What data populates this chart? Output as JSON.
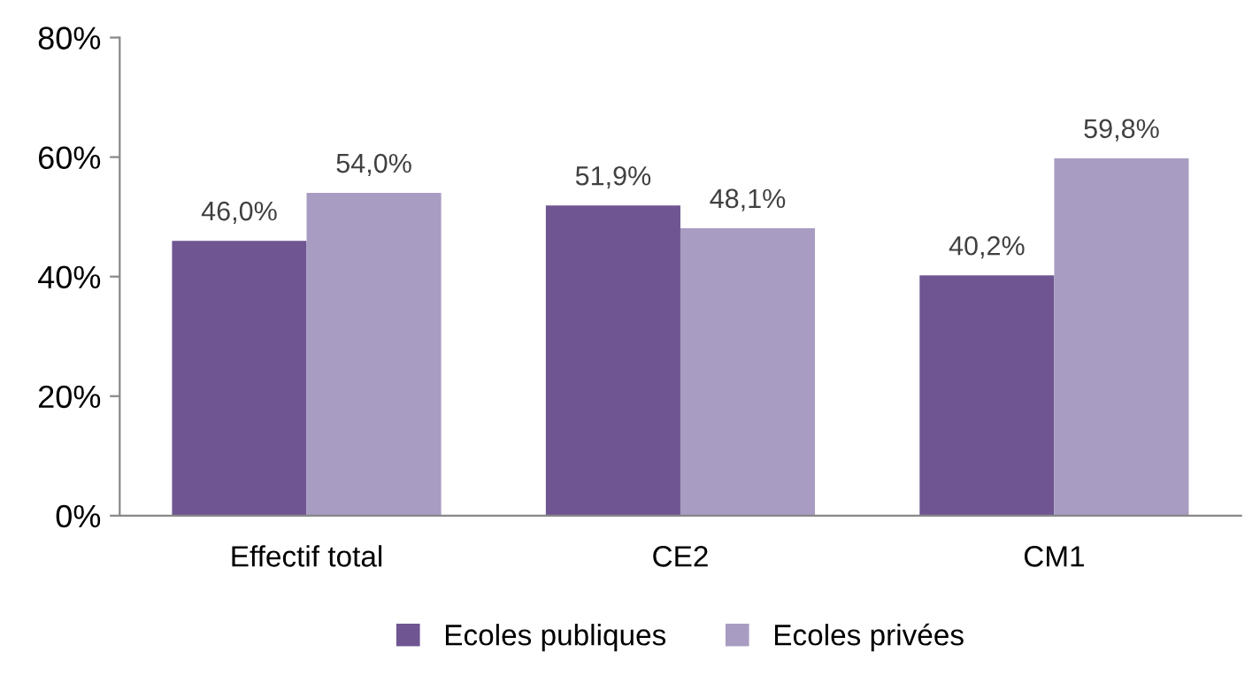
{
  "chart_data": {
    "type": "bar",
    "categories": [
      "Effectif total",
      "CE2",
      "CM1"
    ],
    "series": [
      {
        "name": "Ecoles publiques",
        "color": "#6f5592",
        "values": [
          46.0,
          51.9,
          40.2
        ],
        "value_labels": [
          "46,0%",
          "51,9%",
          "40,2%"
        ]
      },
      {
        "name": "Ecoles privées",
        "color": "#a99cc2",
        "values": [
          54.0,
          48.1,
          59.8
        ],
        "value_labels": [
          "54,0%",
          "48,1%",
          "59,8%"
        ]
      }
    ],
    "ylim": [
      0,
      80
    ],
    "yticks": [
      {
        "value": 0,
        "label": "0%"
      },
      {
        "value": 20,
        "label": "20%"
      },
      {
        "value": 40,
        "label": "40%"
      },
      {
        "value": 60,
        "label": "60%"
      },
      {
        "value": 80,
        "label": "80%"
      }
    ],
    "legend": "bottom"
  }
}
